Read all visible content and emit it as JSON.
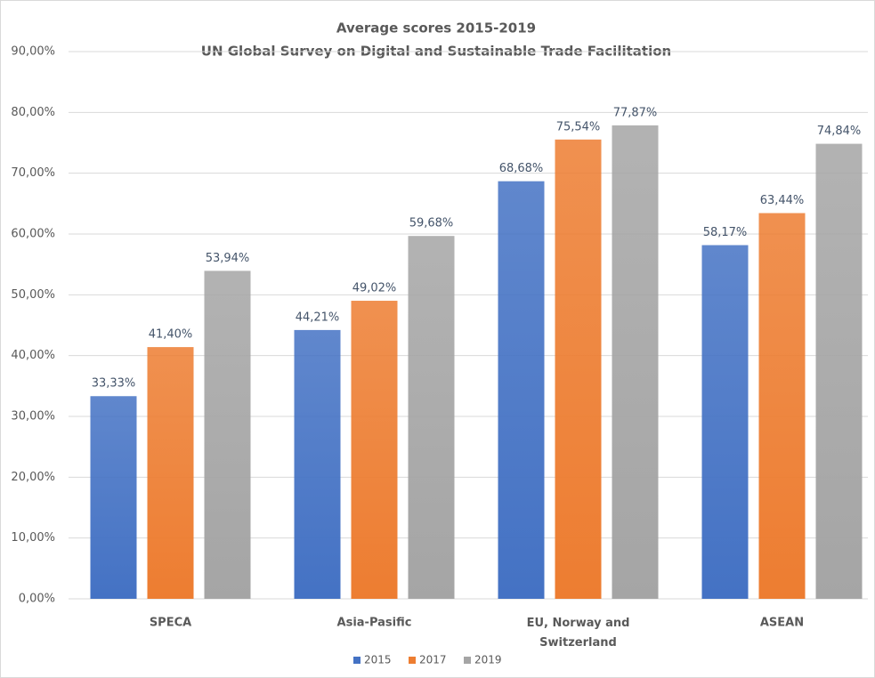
{
  "chart_data": {
    "type": "bar",
    "title": "Average scores 2015-2019",
    "subtitle": "UN Global Survey on Digital and Sustainable Trade Facilitation",
    "categories": [
      "SPECA",
      "Asia-Pasific",
      "EU, Norway and Switzerland",
      "ASEAN"
    ],
    "series": [
      {
        "name": "2015",
        "color": "#4472c4",
        "values": [
          33.33,
          44.21,
          68.68,
          58.17
        ],
        "value_labels": [
          "33,33%",
          "44,21%",
          "68,68%",
          "58,17%"
        ]
      },
      {
        "name": "2017",
        "color": "#ed7d31",
        "values": [
          41.4,
          49.02,
          75.54,
          63.44
        ],
        "value_labels": [
          "41,40%",
          "49,02%",
          "75,54%",
          "63,44%"
        ]
      },
      {
        "name": "2019",
        "color": "#a5a5a5",
        "values": [
          53.94,
          59.68,
          77.87,
          74.84
        ],
        "value_labels": [
          "53,94%",
          "59,68%",
          "77,87%",
          "74,84%"
        ]
      }
    ],
    "ylim": [
      0,
      90
    ],
    "yticks": [
      {
        "value": 0,
        "label": "0,00%"
      },
      {
        "value": 10,
        "label": "10,00%"
      },
      {
        "value": 20,
        "label": "20,00%"
      },
      {
        "value": 30,
        "label": "30,00%"
      },
      {
        "value": 40,
        "label": "40,00%"
      },
      {
        "value": 50,
        "label": "50,00%"
      },
      {
        "value": 60,
        "label": "60,00%"
      },
      {
        "value": 70,
        "label": "70,00%"
      },
      {
        "value": 80,
        "label": "80,00%"
      },
      {
        "value": 90,
        "label": "90,00%"
      }
    ],
    "grid": true,
    "legend": "bottom"
  }
}
